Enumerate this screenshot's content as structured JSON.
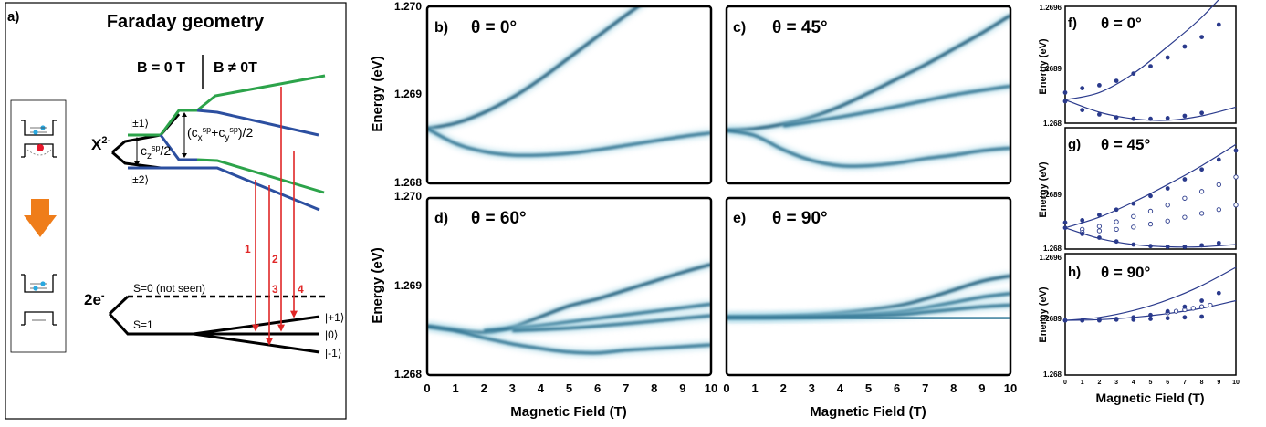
{
  "panel_a": {
    "letter": "a)",
    "title": "Faraday geometry",
    "b_zero": "B = 0 T",
    "b_nonzero": "B ≠ 0T",
    "x2_label": "X",
    "x2_sup": "2-",
    "state_pm1": "|±1⟩",
    "state_pm2": "|±2⟩",
    "cz_main": "c",
    "cz_sub": "z",
    "cz_sup": "sp",
    "cz_tail": "/2",
    "cxy_text": "(c",
    "cxy_sub_x": "x",
    "cxy_sup": "sp",
    "cxy_plus": "+c",
    "cxy_sub_y": "y",
    "cxy_tail": ")/2",
    "two_e_label": "2e",
    "two_e_sup": "-",
    "s0_label": "S=0 (not seen)",
    "s1_label": "S=1",
    "ket_p1": "|+1⟩",
    "ket_0": "|0⟩",
    "ket_m1": "|-1⟩",
    "transitions": [
      "1",
      "2",
      "3",
      "4"
    ],
    "colors": {
      "green": "#2ca34a",
      "blue": "#2c4fa0",
      "red": "#e02727",
      "orange": "#ef7d1a"
    }
  },
  "heatmaps": {
    "b": {
      "letter": "b)",
      "angle": "θ = 0°"
    },
    "c": {
      "letter": "c)",
      "angle": "θ = 45°"
    },
    "d": {
      "letter": "d)",
      "angle": "θ = 60°"
    },
    "e": {
      "letter": "e)",
      "angle": "θ = 90°"
    },
    "y_label": "Energy (eV)",
    "x_label": "Magnetic Field (T)",
    "y_ticks": [
      "1.268",
      "1.269",
      "1.270"
    ],
    "x_ticks": [
      "0",
      "1",
      "2",
      "3",
      "4",
      "5",
      "6",
      "7",
      "8",
      "9",
      "10"
    ]
  },
  "fits": {
    "f": {
      "letter": "f)",
      "angle": "θ = 0°"
    },
    "g": {
      "letter": "g)",
      "angle": "θ = 45°"
    },
    "h": {
      "letter": "h)",
      "angle": "θ = 90°"
    },
    "y_label": "Energy (eV)",
    "x_label": "Magnetic Field (T)",
    "y_ticks": [
      "1.268",
      "1.2689",
      "1.2696"
    ],
    "x_ticks": [
      "0",
      "1",
      "2",
      "3",
      "4",
      "5",
      "6",
      "7",
      "8",
      "9",
      "10"
    ]
  },
  "chart_data": [
    {
      "panel": "b",
      "type": "heatmap",
      "xlabel": "Magnetic Field (T)",
      "ylabel": "Energy (eV)",
      "xlim": [
        0,
        10
      ],
      "ylim": [
        1.268,
        1.27
      ],
      "series": [
        {
          "x": [
            0,
            1,
            2,
            3,
            4,
            5,
            6,
            7,
            8,
            9,
            10
          ],
          "y": [
            1.26862,
            1.26868,
            1.2688,
            1.26897,
            1.26918,
            1.26942,
            1.26966,
            1.2699,
            1.27013,
            1.27036,
            1.2706
          ]
        },
        {
          "x": [
            0,
            1,
            2,
            3,
            4,
            5,
            6,
            7,
            8,
            9,
            10
          ],
          "y": [
            1.26862,
            1.26845,
            1.26836,
            1.26832,
            1.26832,
            1.26834,
            1.26838,
            1.26843,
            1.26848,
            1.26853,
            1.26857
          ]
        }
      ]
    },
    {
      "panel": "c",
      "type": "heatmap",
      "xlabel": "",
      "ylabel": "",
      "xlim": [
        0,
        10
      ],
      "ylim": [
        1.268,
        1.27
      ],
      "series": [
        {
          "x": [
            0,
            1,
            2,
            3,
            4,
            5,
            6,
            7,
            8,
            9,
            10
          ],
          "y": [
            1.2686,
            1.26862,
            1.26867,
            1.26875,
            1.26887,
            1.26902,
            1.26918,
            1.26934,
            1.26952,
            1.2697,
            1.2699
          ]
        },
        {
          "x": [
            0,
            1,
            2,
            3,
            4,
            5,
            6,
            7,
            8,
            9,
            10
          ],
          "y": [
            1.2686,
            1.26854,
            1.26838,
            1.26826,
            1.2682,
            1.2682,
            1.26823,
            1.26828,
            1.26832,
            1.26837,
            1.2684
          ]
        },
        {
          "x": [
            2,
            4,
            6,
            8,
            10
          ],
          "y": [
            1.26865,
            1.26875,
            1.26887,
            1.269,
            1.2691
          ]
        }
      ]
    },
    {
      "panel": "d",
      "type": "heatmap",
      "xlabel": "Magnetic Field (T)",
      "ylabel": "Energy (eV)",
      "xlim": [
        0,
        10
      ],
      "ylim": [
        1.268,
        1.27
      ],
      "series": [
        {
          "x": [
            0,
            1,
            2,
            3,
            4,
            5,
            6,
            7,
            8,
            9,
            10
          ],
          "y": [
            1.26855,
            1.26851,
            1.26848,
            1.26854,
            1.26866,
            1.26878,
            1.26886,
            1.26896,
            1.26906,
            1.26916,
            1.26925
          ]
        },
        {
          "x": [
            0,
            1,
            2,
            3,
            4,
            5,
            6,
            7,
            8,
            9,
            10
          ],
          "y": [
            1.26855,
            1.2685,
            1.26842,
            1.26835,
            1.2683,
            1.26826,
            1.26825,
            1.26828,
            1.2683,
            1.26832,
            1.26834
          ]
        },
        {
          "x": [
            2,
            4,
            6,
            8,
            10
          ],
          "y": [
            1.2685,
            1.26856,
            1.26864,
            1.26872,
            1.2688
          ]
        },
        {
          "x": [
            3,
            5,
            7,
            9,
            10
          ],
          "y": [
            1.2685,
            1.26853,
            1.26858,
            1.26864,
            1.26867
          ]
        }
      ]
    },
    {
      "panel": "e",
      "type": "heatmap",
      "xlabel": "Magnetic Field (T)",
      "ylabel": "",
      "xlim": [
        0,
        10
      ],
      "ylim": [
        1.268,
        1.27
      ],
      "series": [
        {
          "x": [
            0,
            2,
            4,
            6,
            7,
            8,
            9,
            10
          ],
          "y": [
            1.26865,
            1.26866,
            1.2687,
            1.26878,
            1.26886,
            1.26896,
            1.26906,
            1.26912
          ]
        },
        {
          "x": [
            0,
            2,
            4,
            6,
            7,
            8,
            9,
            10
          ],
          "y": [
            1.26865,
            1.26866,
            1.26867,
            1.26871,
            1.26876,
            1.26882,
            1.26888,
            1.26892
          ]
        },
        {
          "x": [
            0,
            2,
            4,
            6,
            7,
            8,
            9,
            10
          ],
          "y": [
            1.26865,
            1.26865,
            1.26866,
            1.26868,
            1.26871,
            1.26874,
            1.26877,
            1.26879
          ]
        },
        {
          "x": [
            0,
            2,
            4,
            6,
            7,
            8,
            9,
            10
          ],
          "y": [
            1.26865,
            1.26865,
            1.26865,
            1.26864,
            1.26864,
            1.26864,
            1.26864,
            1.26864
          ]
        }
      ]
    },
    {
      "panel": "f",
      "type": "scatter",
      "xlabel": "",
      "ylabel": "Energy (eV)",
      "xlim": [
        0,
        10
      ],
      "ylim": [
        1.268,
        1.2696
      ],
      "points_filled": {
        "x": [
          0,
          1,
          2,
          3,
          4,
          5,
          6,
          7,
          8,
          9,
          0,
          1,
          2,
          3,
          4,
          5,
          6,
          7,
          8
        ],
        "y": [
          1.26842,
          1.26848,
          1.26852,
          1.26858,
          1.26868,
          1.26878,
          1.2689,
          1.26905,
          1.26918,
          1.26935,
          1.2683,
          1.26818,
          1.26812,
          1.26808,
          1.26806,
          1.26806,
          1.26807,
          1.2681,
          1.26814
        ]
      },
      "fit_curves": [
        {
          "x": [
            0,
            2,
            4,
            6,
            8,
            10
          ],
          "y": [
            1.26832,
            1.26842,
            1.26868,
            1.26905,
            1.26945,
            1.26995
          ]
        },
        {
          "x": [
            0,
            2,
            4,
            6,
            8,
            10
          ],
          "y": [
            1.26832,
            1.26815,
            1.26806,
            1.26804,
            1.2681,
            1.26822
          ]
        }
      ]
    },
    {
      "panel": "g",
      "type": "scatter",
      "xlabel": "",
      "ylabel": "Energy (eV)",
      "xlim": [
        0,
        10
      ],
      "ylim": [
        1.268,
        1.2696
      ],
      "points_filled": {
        "x": [
          0,
          1,
          2,
          3,
          4,
          5,
          6,
          7,
          8,
          9,
          10,
          0,
          1,
          2,
          3,
          4,
          5,
          6,
          7,
          8,
          9
        ],
        "y": [
          1.26835,
          1.26838,
          1.26845,
          1.26852,
          1.2686,
          1.2687,
          1.2688,
          1.26892,
          1.26905,
          1.26918,
          1.2693,
          1.26828,
          1.2682,
          1.26815,
          1.2681,
          1.26806,
          1.26804,
          1.26803,
          1.26803,
          1.26805,
          1.26808
        ]
      },
      "points_open": {
        "x": [
          1,
          2,
          3,
          4,
          5,
          6,
          7,
          8,
          9,
          10,
          1,
          2,
          3,
          4,
          5,
          6,
          7,
          8,
          9,
          10
        ],
        "y": [
          1.26826,
          1.2683,
          1.26836,
          1.26843,
          1.2685,
          1.26858,
          1.26867,
          1.26876,
          1.26885,
          1.26895,
          1.26822,
          1.26824,
          1.26826,
          1.26829,
          1.26833,
          1.26837,
          1.26842,
          1.26847,
          1.26852,
          1.26858
        ]
      },
      "fit_curves": [
        {
          "x": [
            0,
            2,
            4,
            6,
            8,
            10
          ],
          "y": [
            1.26828,
            1.26842,
            1.26862,
            1.26885,
            1.2691,
            1.26938
          ]
        },
        {
          "x": [
            0,
            2,
            4,
            6,
            8,
            10
          ],
          "y": [
            1.26828,
            1.26814,
            1.26806,
            1.26803,
            1.26803,
            1.26806
          ]
        }
      ]
    },
    {
      "panel": "h",
      "type": "scatter",
      "xlabel": "Magnetic Field (T)",
      "ylabel": "Energy (eV)",
      "xlim": [
        0,
        10
      ],
      "ylim": [
        1.268,
        1.2696
      ],
      "points_filled": {
        "x": [
          0,
          1,
          2,
          3,
          4,
          5,
          6,
          7,
          8,
          9,
          0,
          1,
          2,
          3,
          4,
          5,
          6,
          7,
          8
        ],
        "y": [
          1.26872,
          1.26872,
          1.26873,
          1.26874,
          1.26876,
          1.26879,
          1.26884,
          1.2689,
          1.26898,
          1.26908,
          1.26872,
          1.26872,
          1.26872,
          1.26873,
          1.26873,
          1.26874,
          1.26875,
          1.26876,
          1.26877
        ]
      },
      "points_open": {
        "x": [
          6,
          6.5,
          7,
          7.5,
          8,
          8.5
        ],
        "y": [
          1.26882,
          1.26884,
          1.26886,
          1.26888,
          1.2689,
          1.26892
        ]
      },
      "fit_curves": [
        {
          "x": [
            0,
            2,
            4,
            6,
            8,
            10
          ],
          "y": [
            1.26872,
            1.26876,
            1.26885,
            1.26899,
            1.26918,
            1.26942
          ]
        },
        {
          "x": [
            0,
            2,
            4,
            6,
            8,
            10
          ],
          "y": [
            1.26872,
            1.26873,
            1.26876,
            1.26881,
            1.26888,
            1.26898
          ]
        }
      ]
    }
  ]
}
